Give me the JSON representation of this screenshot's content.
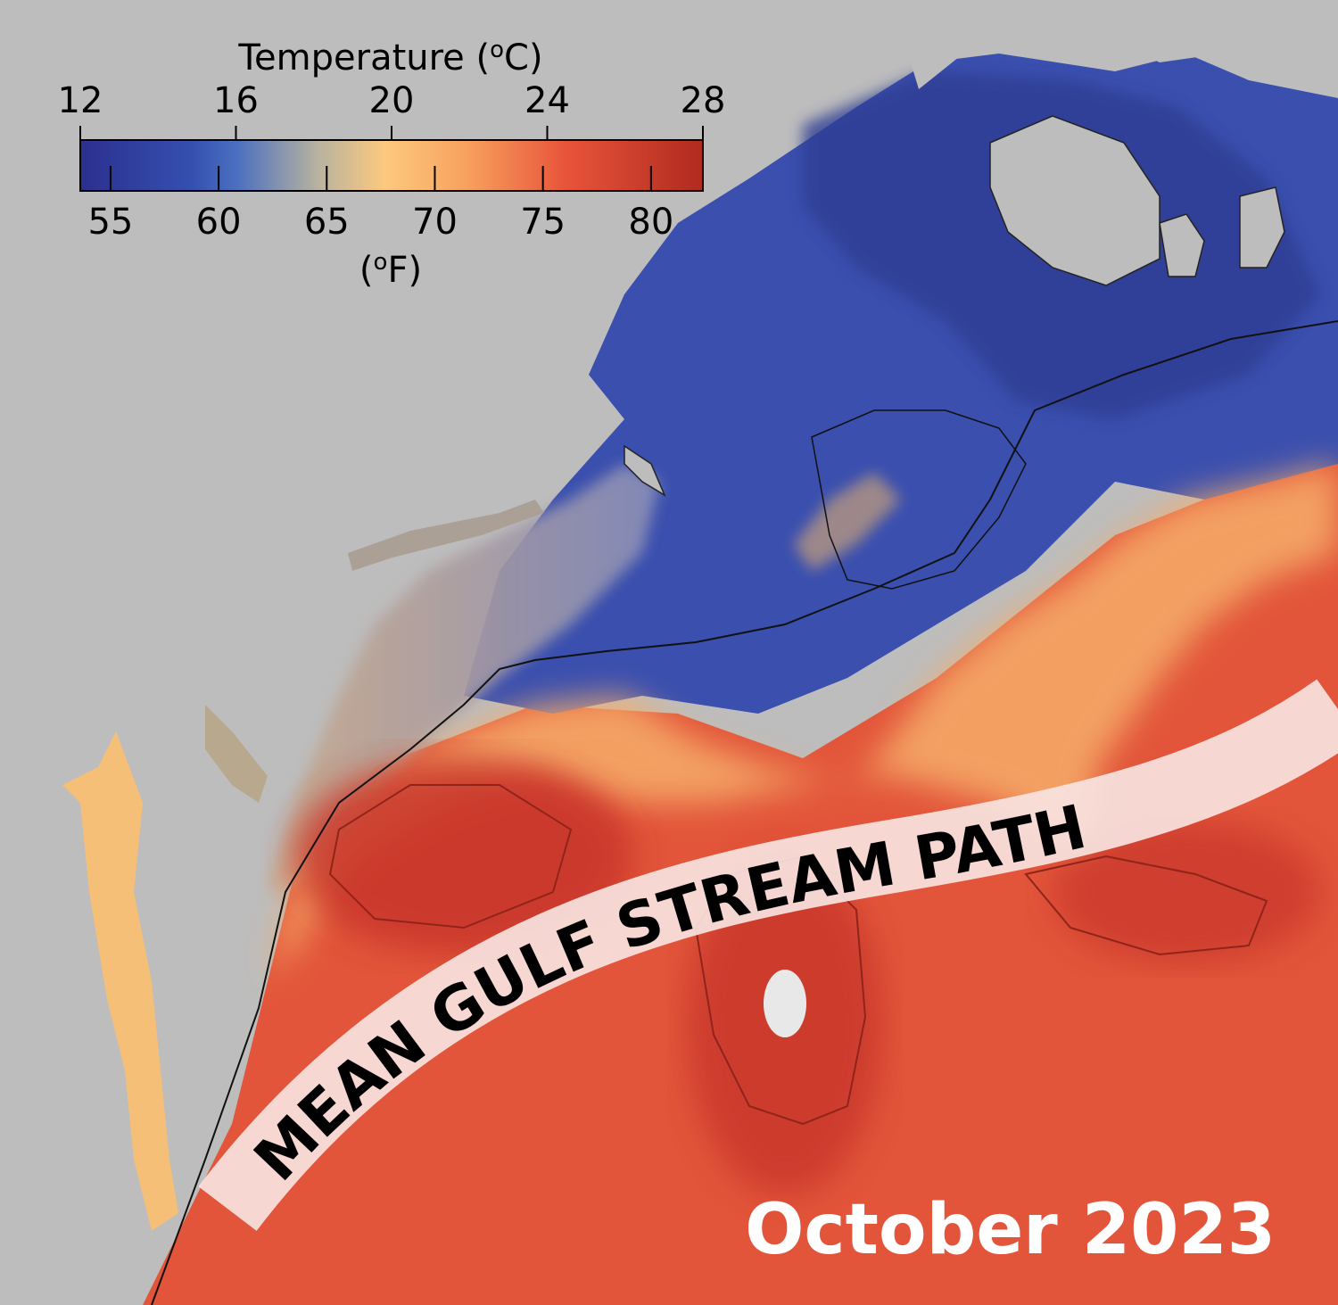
{
  "colorbar": {
    "title_prefix": "Temperature (",
    "title_sup": "o",
    "title_suffix": "C)",
    "celsius_ticks": [
      "12",
      "16",
      "20",
      "24",
      "28"
    ],
    "fahrenheit_ticks": [
      "55",
      "60",
      "65",
      "70",
      "75",
      "80"
    ],
    "unit_prefix": "(",
    "unit_sup": "o",
    "unit_suffix": "F)",
    "colors": [
      "#2c2f8e",
      "#3550b0",
      "#4a6fc0",
      "#b7b2a0",
      "#fdc97e",
      "#f7a15e",
      "#e8543a",
      "#b02a1e"
    ]
  },
  "overlay": {
    "gulf_stream_label": "MEAN GULF STREAM PATH",
    "date_label": "October 2023"
  },
  "map_colors": {
    "land": "#bdbdbd",
    "cold_water": "#3a4fae",
    "warm_water": "#e2553a",
    "front": "#f6ad6a",
    "eddy_core": "#c8352a"
  }
}
